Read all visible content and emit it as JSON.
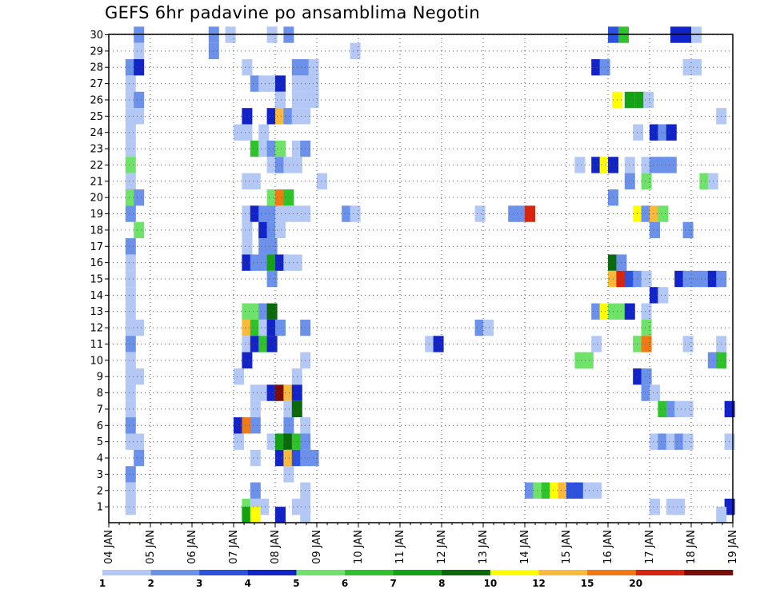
{
  "chart_data": {
    "type": "heatmap",
    "title": "GEFS 6hr padavine po ansamblima Negotin",
    "x_labels": [
      "04 JAN",
      "05 JAN",
      "06 JAN",
      "07 JAN",
      "08 JAN",
      "09 JAN",
      "10 JAN",
      "11 JAN",
      "12 JAN",
      "13 JAN",
      "14 JAN",
      "15 JAN",
      "16 JAN",
      "17 JAN",
      "18 JAN",
      "19 JAN"
    ],
    "y_labels": [
      "1",
      "2",
      "3",
      "4",
      "5",
      "6",
      "7",
      "8",
      "9",
      "10",
      "11",
      "12",
      "13",
      "14",
      "15",
      "16",
      "17",
      "18",
      "19",
      "20",
      "21",
      "22",
      "23",
      "24",
      "25",
      "26",
      "27",
      "28",
      "29",
      "30"
    ],
    "time_steps_per_day": 4,
    "grid": true,
    "legend": {
      "placement": "bottom",
      "bins": [
        1,
        2,
        3,
        4,
        5,
        6,
        7,
        8,
        10,
        12,
        15,
        20
      ],
      "labels": [
        "1",
        "2",
        "3",
        "4",
        "5",
        "6",
        "7",
        "8",
        "10",
        "12",
        "15",
        "20"
      ],
      "colors": [
        "#b4c8f5",
        "#6b91ea",
        "#2c52de",
        "#1224c8",
        "#6fe26a",
        "#2fc22a",
        "#13a213",
        "#0a6a0a",
        "#ffff00",
        "#f9ba3b",
        "#f27a13",
        "#d8260e",
        "#7a0c0c"
      ]
    },
    "cells": [
      [
        30,
        0.6,
        1
      ],
      [
        30,
        2.4,
        1
      ],
      [
        30,
        2.8,
        0
      ],
      [
        30,
        3.8,
        0
      ],
      [
        30,
        4.2,
        1
      ],
      [
        30,
        12.0,
        2
      ],
      [
        30,
        12.25,
        5
      ],
      [
        30,
        13.5,
        3
      ],
      [
        30,
        13.75,
        3
      ],
      [
        30,
        14.0,
        0
      ],
      [
        29,
        0.6,
        0
      ],
      [
        29,
        2.4,
        1
      ],
      [
        29,
        5.8,
        0
      ],
      [
        28,
        0.4,
        1
      ],
      [
        28,
        0.6,
        3
      ],
      [
        28,
        3.2,
        0
      ],
      [
        28,
        4.4,
        1
      ],
      [
        28,
        4.6,
        1
      ],
      [
        28,
        4.8,
        0
      ],
      [
        28,
        11.6,
        3
      ],
      [
        28,
        11.8,
        1
      ],
      [
        28,
        13.8,
        0
      ],
      [
        28,
        14.0,
        0
      ],
      [
        27,
        0.4,
        0
      ],
      [
        27,
        3.4,
        1
      ],
      [
        27,
        3.6,
        0
      ],
      [
        27,
        3.8,
        0
      ],
      [
        27,
        4.0,
        3
      ],
      [
        27,
        4.4,
        0
      ],
      [
        27,
        4.6,
        0
      ],
      [
        27,
        4.8,
        0
      ],
      [
        26,
        0.4,
        0
      ],
      [
        26,
        0.6,
        1
      ],
      [
        26,
        4.0,
        0
      ],
      [
        26,
        4.4,
        0
      ],
      [
        26,
        4.6,
        0
      ],
      [
        26,
        4.8,
        0
      ],
      [
        26,
        12.1,
        8
      ],
      [
        26,
        12.4,
        6
      ],
      [
        26,
        12.65,
        6
      ],
      [
        26,
        12.85,
        0
      ],
      [
        25,
        0.4,
        0
      ],
      [
        25,
        0.6,
        0
      ],
      [
        25,
        3.2,
        3
      ],
      [
        25,
        3.8,
        3
      ],
      [
        25,
        4.0,
        9
      ],
      [
        25,
        4.2,
        1
      ],
      [
        25,
        4.4,
        0
      ],
      [
        25,
        4.6,
        0
      ],
      [
        25,
        14.6,
        0
      ],
      [
        24,
        0.4,
        0
      ],
      [
        24,
        3.0,
        0
      ],
      [
        24,
        3.2,
        0
      ],
      [
        24,
        3.6,
        0
      ],
      [
        24,
        12.6,
        0
      ],
      [
        24,
        13.0,
        3
      ],
      [
        24,
        13.2,
        1
      ],
      [
        24,
        13.4,
        3
      ],
      [
        23,
        0.4,
        0
      ],
      [
        23,
        3.4,
        5
      ],
      [
        23,
        3.6,
        0
      ],
      [
        23,
        3.8,
        1
      ],
      [
        23,
        4.0,
        4
      ],
      [
        23,
        4.4,
        0
      ],
      [
        23,
        4.6,
        1
      ],
      [
        22,
        0.4,
        4
      ],
      [
        22,
        3.8,
        0
      ],
      [
        22,
        4.0,
        1
      ],
      [
        22,
        4.2,
        0
      ],
      [
        22,
        4.4,
        0
      ],
      [
        22,
        11.2,
        0
      ],
      [
        22,
        11.6,
        3
      ],
      [
        22,
        11.8,
        8
      ],
      [
        22,
        12.0,
        3
      ],
      [
        22,
        12.4,
        0
      ],
      [
        22,
        12.8,
        0
      ],
      [
        22,
        13.0,
        1
      ],
      [
        22,
        13.2,
        1
      ],
      [
        22,
        13.4,
        1
      ],
      [
        21,
        0.4,
        0
      ],
      [
        21,
        3.2,
        0
      ],
      [
        21,
        3.4,
        0
      ],
      [
        21,
        5.0,
        0
      ],
      [
        21,
        12.4,
        1
      ],
      [
        21,
        12.8,
        4
      ],
      [
        21,
        14.2,
        4
      ],
      [
        21,
        14.4,
        0
      ],
      [
        20,
        0.4,
        4
      ],
      [
        20,
        0.6,
        1
      ],
      [
        20,
        3.8,
        4
      ],
      [
        20,
        4.0,
        10
      ],
      [
        20,
        4.2,
        5
      ],
      [
        20,
        12.0,
        1
      ],
      [
        19,
        0.4,
        1
      ],
      [
        19,
        3.2,
        0
      ],
      [
        19,
        3.4,
        3
      ],
      [
        19,
        3.6,
        1
      ],
      [
        19,
        3.8,
        1
      ],
      [
        19,
        4.0,
        0
      ],
      [
        19,
        4.2,
        0
      ],
      [
        19,
        4.4,
        0
      ],
      [
        19,
        4.6,
        0
      ],
      [
        19,
        5.6,
        1
      ],
      [
        19,
        5.8,
        0
      ],
      [
        19,
        8.8,
        0
      ],
      [
        19,
        9.6,
        1
      ],
      [
        19,
        9.8,
        1
      ],
      [
        19,
        10.0,
        11
      ],
      [
        19,
        12.6,
        8
      ],
      [
        19,
        12.8,
        1
      ],
      [
        19,
        13.0,
        9
      ],
      [
        19,
        13.2,
        4
      ],
      [
        18,
        0.6,
        4
      ],
      [
        18,
        3.2,
        0
      ],
      [
        18,
        3.6,
        3
      ],
      [
        18,
        3.8,
        1
      ],
      [
        18,
        4.0,
        0
      ],
      [
        18,
        13.0,
        1
      ],
      [
        18,
        13.8,
        1
      ],
      [
        17,
        0.4,
        1
      ],
      [
        17,
        3.2,
        0
      ],
      [
        17,
        3.6,
        1
      ],
      [
        17,
        3.8,
        1
      ],
      [
        16,
        0.4,
        0
      ],
      [
        16,
        3.2,
        3
      ],
      [
        16,
        3.4,
        1
      ],
      [
        16,
        3.6,
        1
      ],
      [
        16,
        3.8,
        6
      ],
      [
        16,
        4.0,
        3
      ],
      [
        16,
        4.2,
        0
      ],
      [
        16,
        4.4,
        0
      ],
      [
        16,
        12.0,
        7
      ],
      [
        16,
        12.2,
        1
      ],
      [
        15,
        0.4,
        0
      ],
      [
        15,
        3.8,
        1
      ],
      [
        15,
        12.0,
        9
      ],
      [
        15,
        12.2,
        11
      ],
      [
        15,
        12.4,
        2
      ],
      [
        15,
        12.6,
        1
      ],
      [
        15,
        12.8,
        0
      ],
      [
        15,
        13.6,
        3
      ],
      [
        15,
        13.8,
        1
      ],
      [
        15,
        14.0,
        1
      ],
      [
        15,
        14.2,
        1
      ],
      [
        15,
        14.4,
        3
      ],
      [
        15,
        14.6,
        1
      ],
      [
        14,
        0.4,
        0
      ],
      [
        14,
        13.0,
        3
      ],
      [
        14,
        13.2,
        0
      ],
      [
        13,
        0.4,
        0
      ],
      [
        13,
        3.2,
        4
      ],
      [
        13,
        3.4,
        4
      ],
      [
        13,
        3.6,
        1
      ],
      [
        13,
        3.8,
        7
      ],
      [
        13,
        11.6,
        1
      ],
      [
        13,
        11.8,
        8
      ],
      [
        13,
        12.0,
        4
      ],
      [
        13,
        12.2,
        4
      ],
      [
        13,
        12.4,
        3
      ],
      [
        13,
        12.8,
        0
      ],
      [
        12,
        0.4,
        0
      ],
      [
        12,
        0.6,
        0
      ],
      [
        12,
        3.2,
        9
      ],
      [
        12,
        3.4,
        5
      ],
      [
        12,
        3.6,
        0
      ],
      [
        12,
        3.8,
        3
      ],
      [
        12,
        4.0,
        1
      ],
      [
        12,
        4.6,
        1
      ],
      [
        12,
        8.8,
        1
      ],
      [
        12,
        9.0,
        0
      ],
      [
        12,
        12.8,
        4
      ],
      [
        11,
        0.4,
        1
      ],
      [
        11,
        3.2,
        0
      ],
      [
        11,
        3.4,
        3
      ],
      [
        11,
        3.6,
        5
      ],
      [
        11,
        3.8,
        3
      ],
      [
        11,
        7.6,
        0
      ],
      [
        11,
        7.8,
        3
      ],
      [
        11,
        11.6,
        0
      ],
      [
        11,
        12.6,
        4
      ],
      [
        11,
        12.8,
        10
      ],
      [
        11,
        13.8,
        0
      ],
      [
        11,
        14.6,
        0
      ],
      [
        10,
        0.4,
        0
      ],
      [
        10,
        3.2,
        3
      ],
      [
        10,
        4.6,
        0
      ],
      [
        10,
        11.2,
        4
      ],
      [
        10,
        11.4,
        4
      ],
      [
        10,
        14.4,
        1
      ],
      [
        10,
        14.6,
        5
      ],
      [
        9,
        0.4,
        0
      ],
      [
        9,
        0.6,
        0
      ],
      [
        9,
        3.0,
        0
      ],
      [
        9,
        4.4,
        0
      ],
      [
        9,
        12.6,
        3
      ],
      [
        9,
        12.8,
        1
      ],
      [
        8,
        0.4,
        0
      ],
      [
        8,
        3.4,
        0
      ],
      [
        8,
        3.6,
        0
      ],
      [
        8,
        3.8,
        3
      ],
      [
        8,
        4.0,
        12
      ],
      [
        8,
        4.2,
        9
      ],
      [
        8,
        4.4,
        3
      ],
      [
        8,
        12.8,
        1
      ],
      [
        8,
        13.0,
        0
      ],
      [
        7,
        0.4,
        0
      ],
      [
        7,
        3.4,
        0
      ],
      [
        7,
        4.2,
        0
      ],
      [
        7,
        4.4,
        7
      ],
      [
        7,
        13.2,
        5
      ],
      [
        7,
        13.4,
        1
      ],
      [
        7,
        13.6,
        0
      ],
      [
        7,
        13.8,
        0
      ],
      [
        7,
        14.8,
        3
      ],
      [
        6,
        0.4,
        1
      ],
      [
        6,
        3.0,
        3
      ],
      [
        6,
        3.2,
        10
      ],
      [
        6,
        3.4,
        1
      ],
      [
        6,
        4.2,
        1
      ],
      [
        6,
        4.6,
        0
      ],
      [
        5,
        0.4,
        0
      ],
      [
        5,
        0.6,
        0
      ],
      [
        5,
        3.0,
        0
      ],
      [
        5,
        3.8,
        0
      ],
      [
        5,
        4.0,
        6
      ],
      [
        5,
        4.2,
        7
      ],
      [
        5,
        4.4,
        5
      ],
      [
        5,
        4.6,
        1
      ],
      [
        5,
        13.0,
        0
      ],
      [
        5,
        13.2,
        1
      ],
      [
        5,
        13.4,
        0
      ],
      [
        5,
        13.6,
        1
      ],
      [
        5,
        13.8,
        0
      ],
      [
        5,
        14.8,
        0
      ],
      [
        4,
        0.6,
        1
      ],
      [
        4,
        3.4,
        0
      ],
      [
        4,
        4.0,
        3
      ],
      [
        4,
        4.2,
        9
      ],
      [
        4,
        4.4,
        2
      ],
      [
        4,
        4.6,
        1
      ],
      [
        4,
        4.8,
        1
      ],
      [
        3,
        0.4,
        1
      ],
      [
        3,
        4.2,
        0
      ],
      [
        2,
        0.4,
        0
      ],
      [
        2,
        3.4,
        1
      ],
      [
        2,
        4.6,
        0
      ],
      [
        2,
        10.0,
        1
      ],
      [
        2,
        10.2,
        4
      ],
      [
        2,
        10.4,
        5
      ],
      [
        2,
        10.6,
        8
      ],
      [
        2,
        10.8,
        9
      ],
      [
        2,
        11.0,
        2
      ],
      [
        2,
        11.2,
        2
      ],
      [
        2,
        11.4,
        0
      ],
      [
        2,
        11.6,
        0
      ],
      [
        1,
        0.4,
        0
      ],
      [
        1,
        3.2,
        4
      ],
      [
        1,
        3.4,
        0
      ],
      [
        1,
        3.6,
        0
      ],
      [
        1,
        4.4,
        0
      ],
      [
        1,
        4.6,
        0
      ],
      [
        1,
        13.0,
        0
      ],
      [
        1,
        13.4,
        0
      ],
      [
        1,
        13.6,
        0
      ],
      [
        1,
        14.8,
        3
      ],
      [
        0.5,
        3.2,
        6
      ],
      [
        0.5,
        3.4,
        8
      ],
      [
        0.5,
        4.0,
        3
      ],
      [
        0.5,
        4.6,
        0
      ],
      [
        0.5,
        14.6,
        0
      ]
    ]
  }
}
